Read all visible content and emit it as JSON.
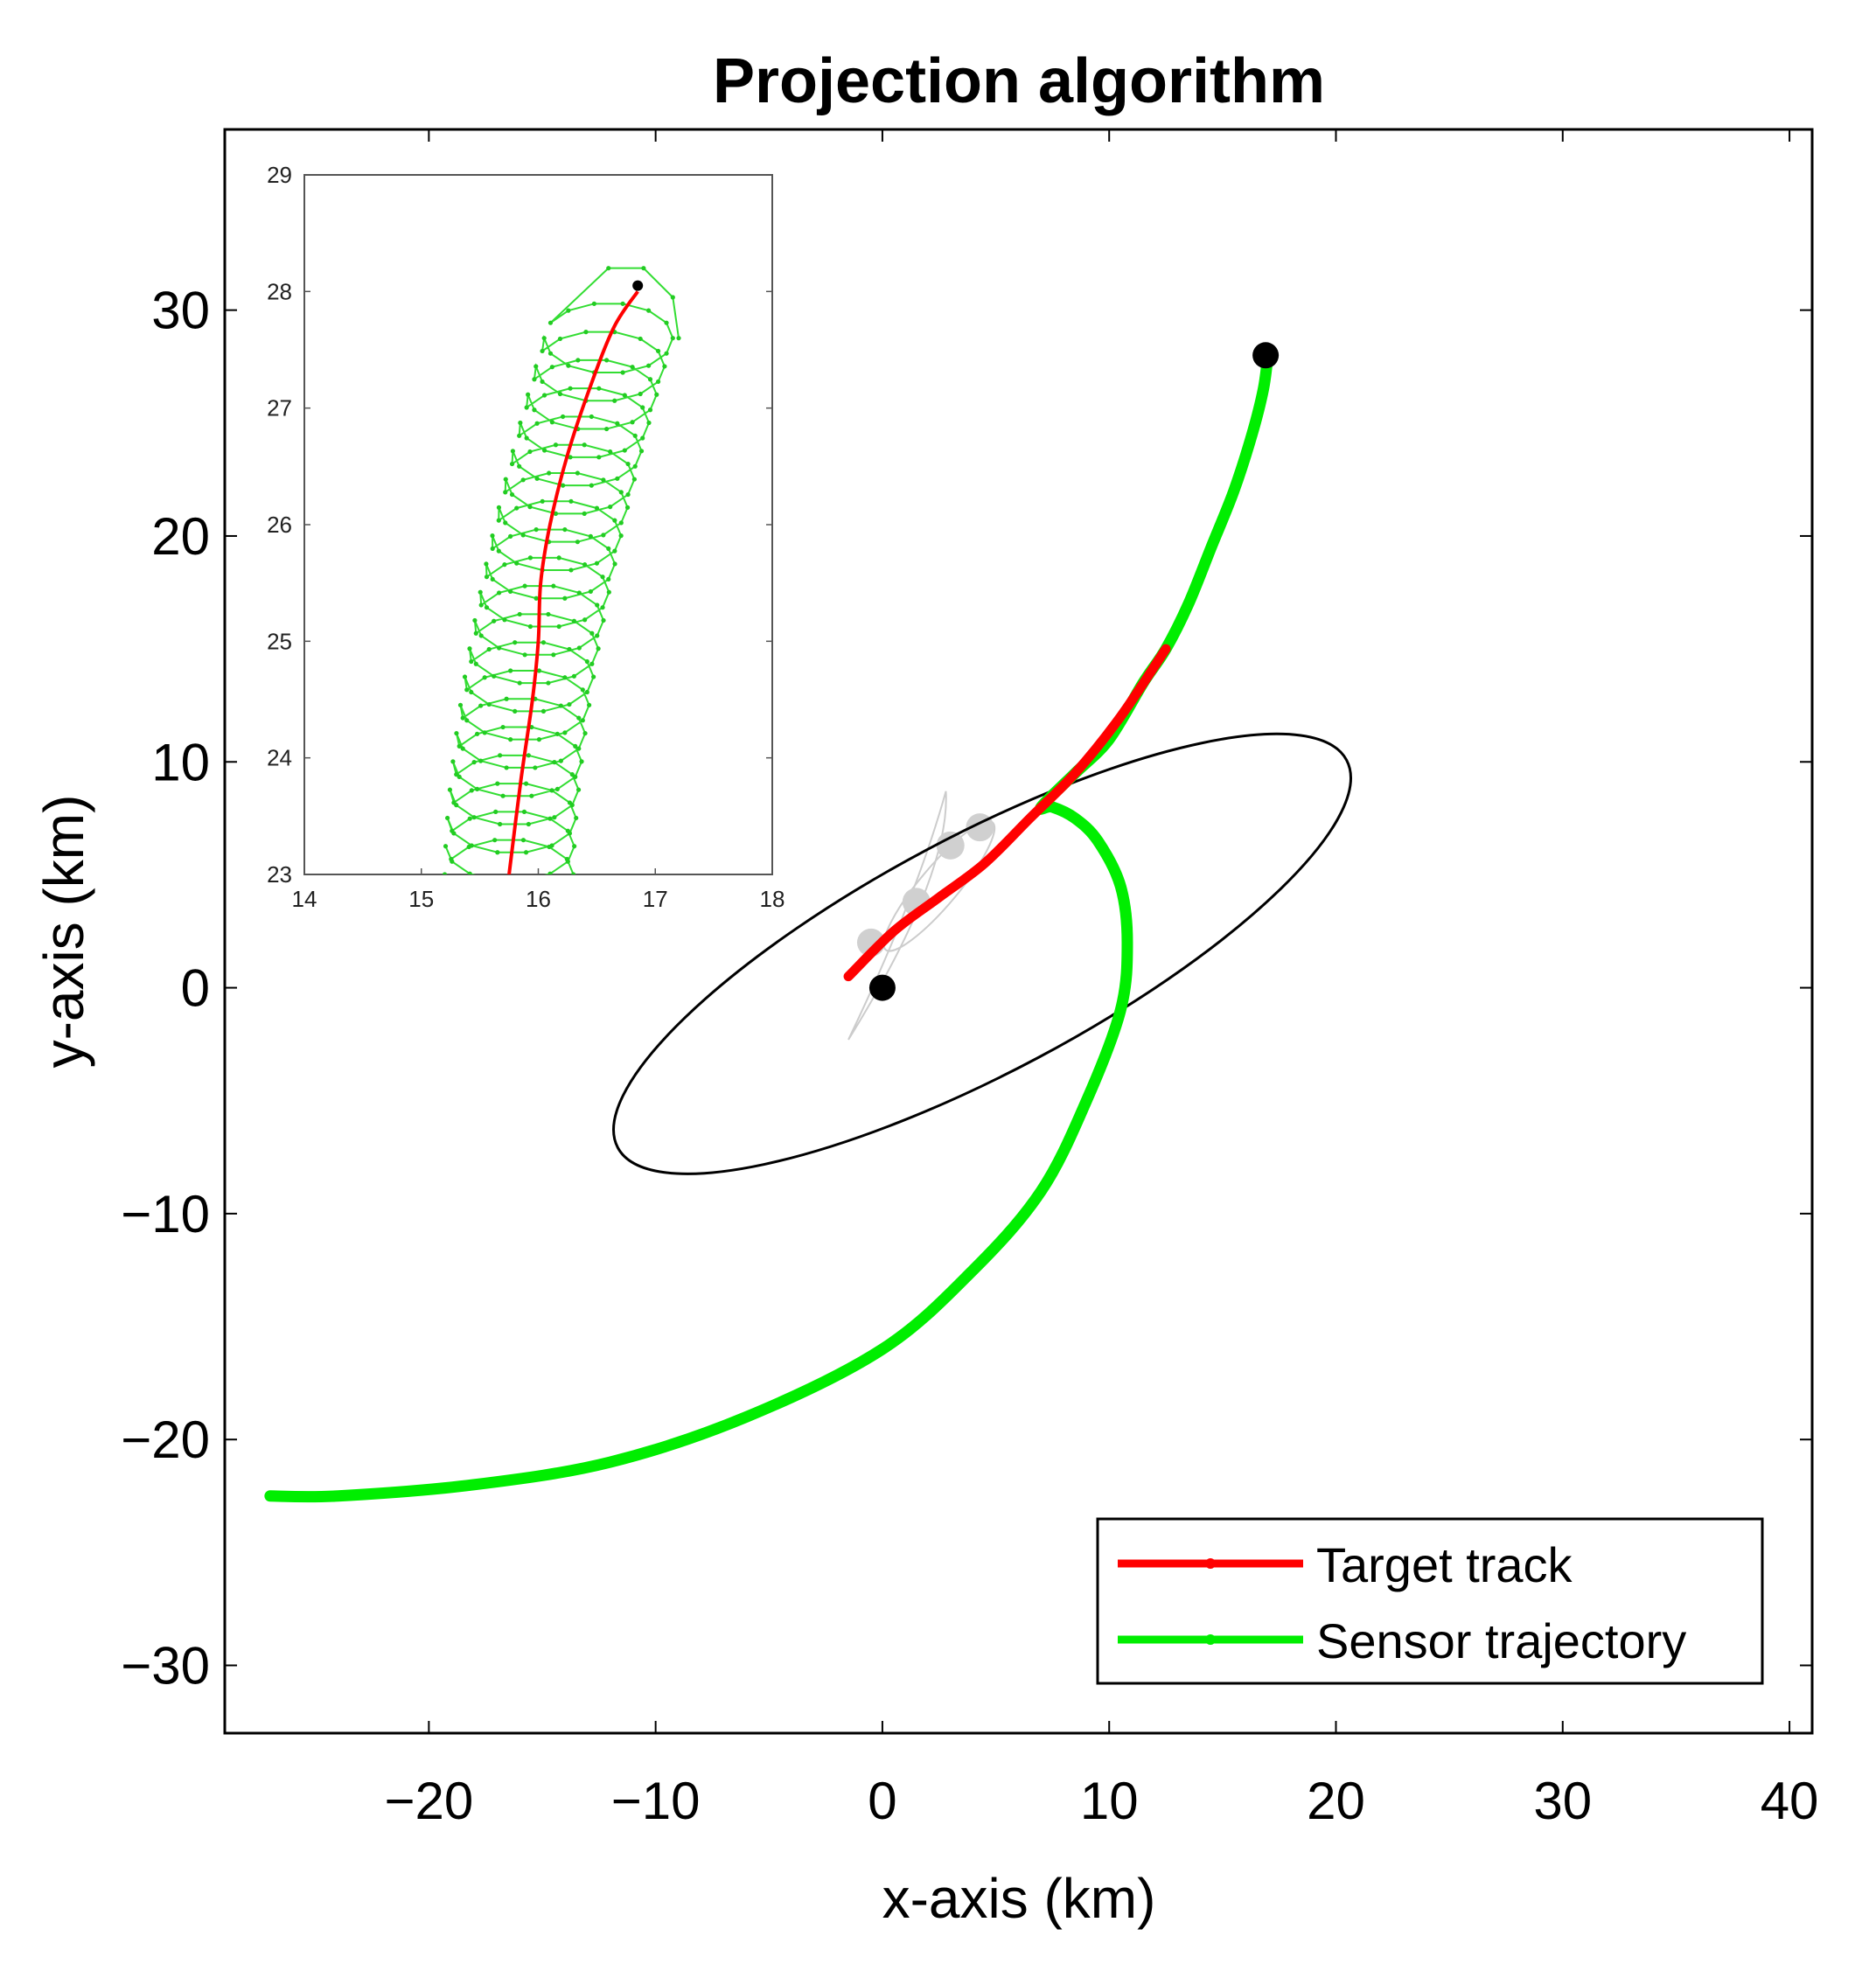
{
  "chart_data": {
    "type": "line",
    "title": "Projection algorithm",
    "xlabel": "x-axis (km)",
    "ylabel": "y-axis (km)",
    "xlim": [
      -29,
      41
    ],
    "ylim": [
      -33,
      38
    ],
    "xticks": [
      -20,
      -10,
      0,
      10,
      20,
      30,
      40
    ],
    "yticks": [
      -30,
      -20,
      -10,
      0,
      10,
      20,
      30
    ],
    "xtick_labels": [
      "−20",
      "−10",
      "0",
      "10",
      "20",
      "30",
      "40"
    ],
    "ytick_labels": [
      "−30",
      "−20",
      "−10",
      "0",
      "10",
      "20",
      "30"
    ],
    "legend": {
      "position": "bottom-right",
      "entries": [
        {
          "label": "Target track",
          "color": "#ff0000"
        },
        {
          "label": "Sensor trajectory",
          "color": "#00ee00"
        }
      ]
    },
    "series": [
      {
        "name": "Target track",
        "color": "#ff0000",
        "x": [
          -1.5,
          0.5,
          2.5,
          4.5,
          6.5,
          8.5,
          10.5,
          12.5
        ],
        "y": [
          0.5,
          2.5,
          4.0,
          5.5,
          7.5,
          9.5,
          12.0,
          15.0
        ]
      },
      {
        "name": "Sensor trajectory",
        "color": "#00ee00",
        "x": [
          -27,
          -24,
          -18,
          -12,
          -6,
          0,
          4,
          7,
          9,
          10.5,
          10.8,
          10.5,
          9.5,
          8.5,
          7.5,
          7.0,
          8.5,
          10.0,
          11.5,
          12.5,
          13.5,
          14.5,
          15.5,
          16.3,
          16.8,
          17.0
        ],
        "y": [
          -22.5,
          -22.5,
          -22.0,
          -21.0,
          -19.0,
          -16.0,
          -12.5,
          -9.0,
          -5.0,
          -1.0,
          2.0,
          4.5,
          6.5,
          7.5,
          8.0,
          8.0,
          9.5,
          11.0,
          13.5,
          15.0,
          17.0,
          19.5,
          22.0,
          24.5,
          26.5,
          28.0
        ]
      }
    ],
    "markers": [
      {
        "name": "origin",
        "x": 0,
        "y": 0,
        "color": "#000000"
      },
      {
        "name": "track-end",
        "x": 16.9,
        "y": 28.0,
        "color": "#000000"
      }
    ],
    "shapes": [
      {
        "name": "uncertainty-ellipse",
        "color": "#000000",
        "center_x": 4.4,
        "center_y": 1.5,
        "semi_major": 18.2,
        "semi_minor": 5.2,
        "angle_deg": 28
      }
    ],
    "grey_estimates": [
      {
        "x": -0.5,
        "y": 2.0
      },
      {
        "x": 1.5,
        "y": 3.8
      },
      {
        "x": 3.0,
        "y": 6.3
      },
      {
        "x": 4.3,
        "y": 7.1
      }
    ],
    "inset": {
      "xlim": [
        14,
        18
      ],
      "ylim": [
        23,
        29
      ],
      "xticks": [
        14,
        15,
        16,
        17,
        18
      ],
      "yticks": [
        23,
        24,
        25,
        26,
        27,
        28,
        29
      ],
      "xtick_labels": [
        "14",
        "15",
        "16",
        "17",
        "18"
      ],
      "ytick_labels": [
        "23",
        "24",
        "25",
        "26",
        "27",
        "28",
        "29"
      ],
      "target_track": {
        "x": [
          15.75,
          15.85,
          15.95,
          16.0,
          16.02,
          16.1,
          16.25,
          16.45,
          16.65,
          16.85
        ],
        "y": [
          23.0,
          23.8,
          24.5,
          25.0,
          25.5,
          26.0,
          26.6,
          27.2,
          27.7,
          28.0
        ]
      },
      "sensor_loops": {
        "radius": 0.55,
        "count": 20,
        "start": {
          "x": 15.75,
          "y": 23.0
        },
        "end": {
          "x": 16.6,
          "y": 27.6
        },
        "tail": {
          "x": [
            16.6,
            16.9,
            17.15,
            17.2
          ],
          "y": [
            28.2,
            28.2,
            27.95,
            27.6
          ]
        }
      },
      "end_marker": {
        "x": 16.85,
        "y": 28.05
      }
    }
  }
}
